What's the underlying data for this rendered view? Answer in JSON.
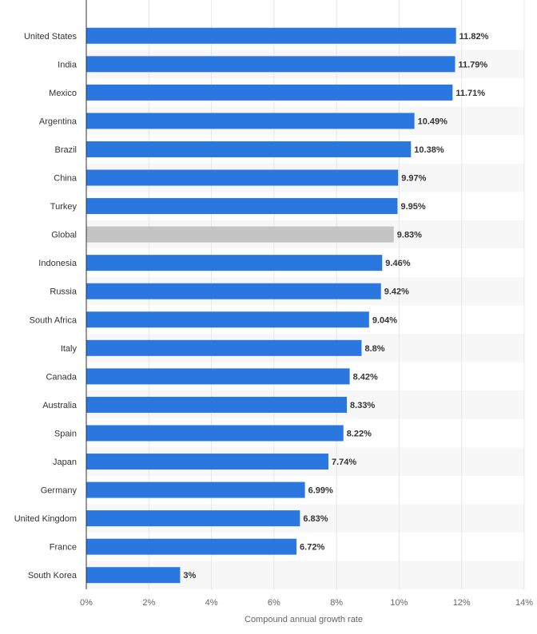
{
  "chart_data": {
    "type": "bar",
    "orientation": "horizontal",
    "title": "",
    "xlabel": "Compound annual growth rate",
    "ylabel": "",
    "xlim": [
      0,
      14
    ],
    "ticks": [
      "0%",
      "2%",
      "4%",
      "6%",
      "8%",
      "10%",
      "12%",
      "14%"
    ],
    "tick_values": [
      0,
      2,
      4,
      6,
      8,
      10,
      12,
      14
    ],
    "grid": true,
    "value_suffix": "%",
    "categories": [
      "United States",
      "India",
      "Mexico",
      "Argentina",
      "Brazil",
      "China",
      "Turkey",
      "Global",
      "Indonesia",
      "Russia",
      "South Africa",
      "Italy",
      "Canada",
      "Australia",
      "Spain",
      "Japan",
      "Germany",
      "United Kingdom",
      "France",
      "South Korea"
    ],
    "values": [
      11.82,
      11.79,
      11.71,
      10.49,
      10.38,
      9.97,
      9.95,
      9.83,
      9.46,
      9.42,
      9.04,
      8.8,
      8.42,
      8.33,
      8.22,
      7.74,
      6.99,
      6.83,
      6.72,
      3
    ],
    "value_labels": [
      "11.82%",
      "11.79%",
      "11.71%",
      "10.49%",
      "10.38%",
      "9.97%",
      "9.95%",
      "9.83%",
      "9.46%",
      "9.42%",
      "9.04%",
      "8.8%",
      "8.42%",
      "8.33%",
      "8.22%",
      "7.74%",
      "6.99%",
      "6.83%",
      "6.72%",
      "3%"
    ],
    "highlight_category": "Global",
    "colors": {
      "bar": "#2a77e0",
      "highlight_bar": "#c4c4c4",
      "band": "#f7f7f7",
      "grid": "#e6e6e6",
      "axis": "#333333"
    }
  }
}
